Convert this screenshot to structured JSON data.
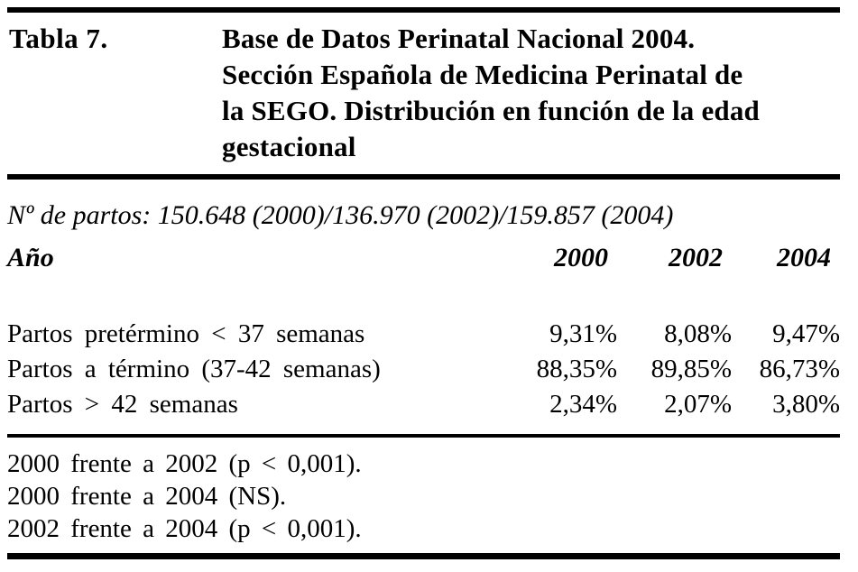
{
  "page": {
    "background_color": "#ffffff",
    "text_color": "#000000"
  },
  "table": {
    "label": "Tabla 7.",
    "title_lines": [
      "Base de Datos Perinatal Nacional 2004.",
      "Sección Española de Medicina Perinatal de",
      "la SEGO. Distribución en función de la edad",
      "gestacional"
    ],
    "subtitle": "Nº de partos: 150.648 (2000)/136.970 (2002)/159.857 (2004)",
    "columns": {
      "row_label": "Año",
      "years": [
        "2000",
        "2002",
        "2004"
      ]
    },
    "rows": [
      {
        "label": "Partos pretérmino < 37 semanas",
        "values": [
          "9,31%",
          "8,08%",
          "9,47%"
        ]
      },
      {
        "label": "Partos a término (37-42 semanas)",
        "values": [
          "88,35%",
          "89,85%",
          "86,73%"
        ]
      },
      {
        "label": "Partos > 42 semanas",
        "values": [
          "2,34%",
          "2,07%",
          "3,80%"
        ]
      }
    ],
    "footnotes": [
      "2000 frente a 2002 (p < 0,001).",
      "2000 frente a 2004 (NS).",
      "2002 frente a 2004 (p < 0,001)."
    ]
  },
  "chart_data": {
    "type": "table",
    "title": "Tabla 7. Base de Datos Perinatal Nacional 2004. Sección Española de Medicina Perinatal de la SEGO. Distribución en función de la edad gestacional",
    "subtitle": "Nº de partos: 150.648 (2000)/136.970 (2002)/159.857 (2004)",
    "categories": [
      "Partos pretérmino < 37 semanas",
      "Partos a término (37-42 semanas)",
      "Partos > 42 semanas"
    ],
    "series": [
      {
        "name": "2000",
        "values": [
          9.31,
          88.35,
          2.34
        ]
      },
      {
        "name": "2002",
        "values": [
          8.08,
          89.85,
          2.07
        ]
      },
      {
        "name": "2004",
        "values": [
          9.47,
          86.73,
          3.8
        ]
      }
    ],
    "value_unit": "%",
    "notes": [
      "2000 frente a 2002 (p < 0,001).",
      "2000 frente a 2004 (NS).",
      "2002 frente a 2004 (p < 0,001)."
    ]
  }
}
